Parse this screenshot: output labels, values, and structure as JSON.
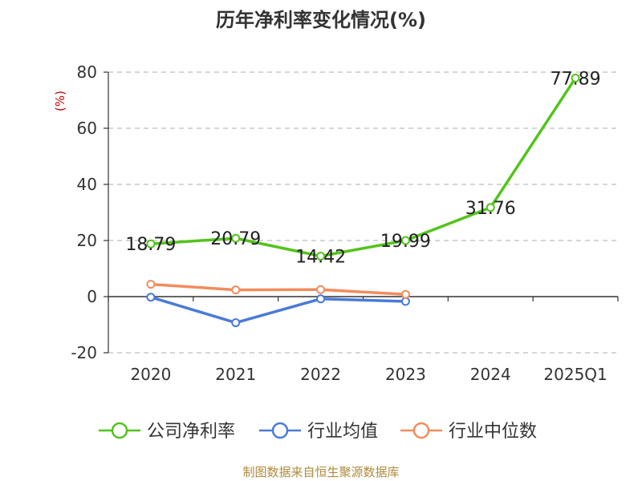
{
  "chart_data": {
    "type": "line",
    "title": "历年净利率变化情况(%)",
    "ylabel": "(%)",
    "xlabel": "",
    "categories": [
      "2020",
      "2021",
      "2022",
      "2023",
      "2024",
      "2025Q1"
    ],
    "ylim": [
      -20,
      80
    ],
    "yticks": [
      -20,
      0,
      20,
      40,
      60,
      80
    ],
    "grid": true,
    "legend_position": "bottom",
    "series": [
      {
        "name": "公司净利率",
        "color": "#52c41a",
        "values": [
          18.79,
          20.79,
          14.42,
          19.99,
          31.76,
          77.89
        ],
        "labels": [
          "18.79",
          "20.79",
          "14.42",
          "19.99",
          "31.76",
          "77.89"
        ]
      },
      {
        "name": "行业均值",
        "color": "#4a7bd6",
        "values": [
          -0.2,
          -9.3,
          -0.8,
          -1.7,
          null,
          null
        ]
      },
      {
        "name": "行业中位数",
        "color": "#f28c5c",
        "values": [
          4.4,
          2.4,
          2.5,
          0.8,
          null,
          null
        ]
      }
    ]
  },
  "source_text": "制图数据来自恒生聚源数据库"
}
